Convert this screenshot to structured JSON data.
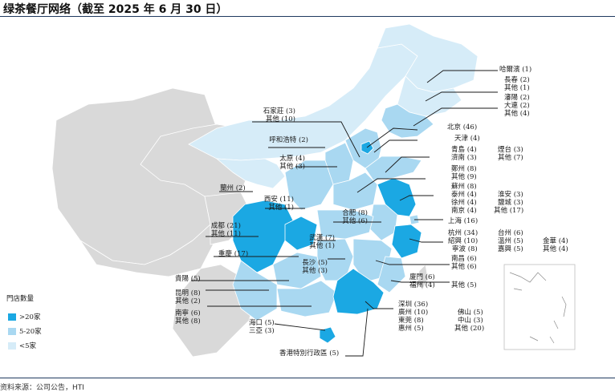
{
  "title": "绿茶餐厅网络（截至 2025 年 6 月 30 日）",
  "source": "资料来源：公司公告，HTI",
  "colors": {
    "high": "#1ba8e3",
    "mid": "#a9d8f1",
    "low": "#d6ecf8",
    "other_country": "#d9d9d9",
    "line": "#1a1a1a",
    "island_box": "#bfbfbf"
  },
  "legend": {
    "title": "門店數量",
    "items": [
      {
        "label": ">20家",
        "color": "#1ba8e3"
      },
      {
        "label": "5-20家",
        "color": "#a9d8f1"
      },
      {
        "label": "<5家",
        "color": "#d6ecf8"
      }
    ]
  },
  "labels": {
    "haerbin": "哈爾濱 (1)",
    "changchun": "長春 (2)",
    "jilin_other": "其他 (1)",
    "shenyang": "瀋陽 (2)",
    "dalian": "大連 (2)",
    "liaoning_other": "其他 (4)",
    "beijing": "北京 (46)",
    "tianjin": "天津 (4)",
    "shijiazhuang": "石家莊 (3)",
    "hebei_other": "其他 (10)",
    "huhehaote": "呼和浩特 (2)",
    "taiyuan": "太原 (4)",
    "shanxi_other": "其他 (3)",
    "qingdao": "青島 (4)",
    "jinan": "濟南 (3)",
    "yantai": "煙台 (3)",
    "shandong_other": "其他 (7)",
    "zhengzhou": "鄭州 (8)",
    "henan_other": "其他 (9)",
    "lanzhou": "蘭州 (2)",
    "xian": "西安 (11)",
    "shaanxi_other": "其他 (1)",
    "suzhou": "蘇州 (8)",
    "taizhou_js": "泰州 (4)",
    "xuzhou": "徐州 (4)",
    "nanjing": "南京 (4)",
    "huaian": "淮安 (3)",
    "yancheng": "鹽城 (3)",
    "jiangsu_other": "其他 (17)",
    "hefei": "合肥 (8)",
    "anhui_other": "其他 (6)",
    "shanghai": "上海 (16)",
    "chengdu": "成都 (21)",
    "sichuan_other": "其他 (11)",
    "wuhan": "武漢 (7)",
    "hubei_other": "其他 (1)",
    "hangzhou": "杭州 (34)",
    "shaoxing": "紹興 (10)",
    "ningbo": "寧波 (8)",
    "taizhou_zj": "台州 (6)",
    "wenzhou": "溫州 (5)",
    "jiaxing": "嘉興 (5)",
    "jinhua": "金華 (4)",
    "zhejiang_other": "其他 (4)",
    "chongqing": "重慶 (17)",
    "changsha": "長沙 (5)",
    "hunan_other": "其他 (3)",
    "nanchang": "南昌 (6)",
    "jiangxi_other": "其他 (6)",
    "guiyang": "貴陽 (5)",
    "xiamen": "廈門 (6)",
    "fuzhou": "福州 (4)",
    "fujian_other": "其他 (5)",
    "kunming": "昆明 (8)",
    "yunnan_other": "其他 (2)",
    "shenzhen": "深圳 (36)",
    "guangzhou": "廣州 (10)",
    "dongguan": "東莞 (8)",
    "huizhou": "惠州 (5)",
    "foshan": "佛山 (5)",
    "zhongshan": "中山 (3)",
    "guangdong_other": "其他 (20)",
    "nanning": "南寧 (6)",
    "guangxi_other": "其他 (8)",
    "haikou": "海口 (5)",
    "sanya": "三亞 (3)",
    "hongkong": "香港特別行政區 (5)"
  }
}
